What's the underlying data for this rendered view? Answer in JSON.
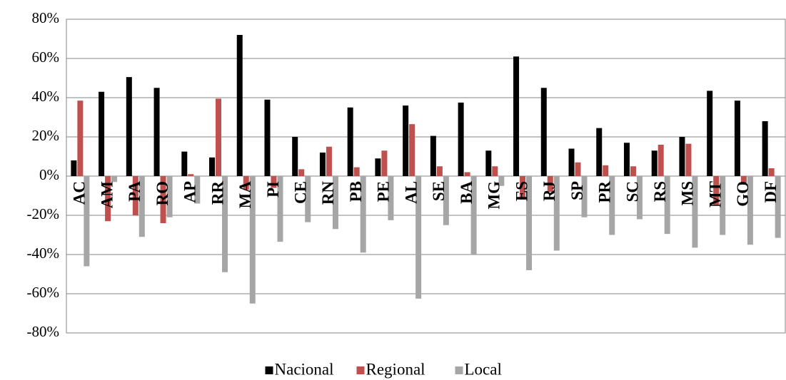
{
  "chart_data": {
    "type": "bar",
    "categories": [
      "AC",
      "AM",
      "PA",
      "RO",
      "AP",
      "RR",
      "MA",
      "PI",
      "CE",
      "RN",
      "PB",
      "PE",
      "AL",
      "SE",
      "BA",
      "MG",
      "ES",
      "RJ",
      "SP",
      "PR",
      "SC",
      "RS",
      "MS",
      "MT",
      "GO",
      "DF"
    ],
    "series": [
      {
        "name": "Nacional",
        "color": "#000000",
        "values": [
          8,
          43,
          50.5,
          45,
          12.5,
          9.5,
          72,
          39,
          20,
          12,
          35,
          9,
          36,
          20.5,
          37.5,
          13,
          61,
          45,
          14,
          24.5,
          17,
          13,
          20,
          43.5,
          38.5,
          28
        ]
      },
      {
        "name": "Regional",
        "color": "#c0504d",
        "values": [
          38.5,
          -23,
          -20,
          -24,
          1,
          39.5,
          -7,
          -6,
          3.5,
          15,
          4.5,
          13,
          26.5,
          5,
          2,
          5,
          -12,
          -8,
          7,
          5.5,
          5,
          16,
          16.5,
          -15,
          -3.5,
          4
        ]
      },
      {
        "name": "Local",
        "color": "#a6a6a6",
        "values": [
          -46,
          -3,
          -31,
          -21,
          -14,
          -49,
          -65,
          -33.5,
          -23.5,
          -27,
          -39,
          -22.5,
          -62.5,
          -25,
          -40,
          -5,
          -48,
          -38,
          -21,
          -30,
          -22,
          -29.5,
          -36.5,
          -30,
          -35,
          -31.5
        ]
      }
    ],
    "ylim": [
      -80,
      80
    ],
    "yticks": [
      {
        "value": -80,
        "label": "-80%"
      },
      {
        "value": -60,
        "label": "-60%"
      },
      {
        "value": -40,
        "label": "-40%"
      },
      {
        "value": -20,
        "label": "-20%"
      },
      {
        "value": 0,
        "label": "0%"
      },
      {
        "value": 20,
        "label": "20%"
      },
      {
        "value": 40,
        "label": "40%"
      },
      {
        "value": 60,
        "label": "60%"
      },
      {
        "value": 80,
        "label": "80%"
      }
    ],
    "grid": true,
    "legend": "bottom"
  }
}
